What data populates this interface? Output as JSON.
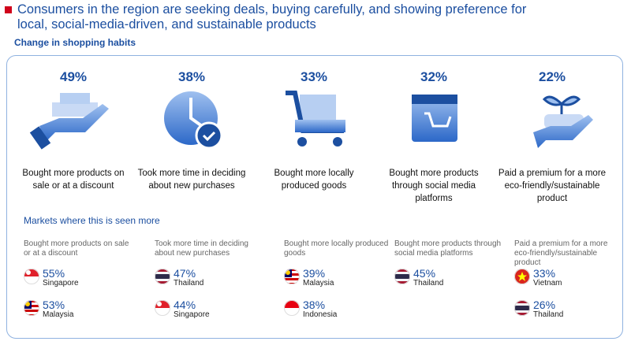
{
  "header": {
    "title": "Consumers in the region are seeking deals, buying carefully, and showing preference for local, social-media-driven, and sustainable products",
    "subtitle": "Change in shopping habits"
  },
  "habits": [
    {
      "percent": "49%",
      "label": "Bought more products on sale or at a discount"
    },
    {
      "percent": "38%",
      "label": "Took more time in deciding about new purchases"
    },
    {
      "percent": "33%",
      "label": "Bought more locally produced goods"
    },
    {
      "percent": "32%",
      "label": "Bought more products through social media platforms"
    },
    {
      "percent": "22%",
      "label": "Paid a premium for a more eco-friendly/sustainable product"
    }
  ],
  "markets_title": "Markets where this is seen more",
  "markets": [
    {
      "habit": "Bought more products on sale or at a discount",
      "entries": [
        {
          "percent": "55%",
          "country": "Singapore"
        },
        {
          "percent": "53%",
          "country": "Malaysia"
        }
      ]
    },
    {
      "habit": "Took more time in deciding about new purchases",
      "entries": [
        {
          "percent": "47%",
          "country": "Thailand"
        },
        {
          "percent": "44%",
          "country": "Singapore"
        }
      ]
    },
    {
      "habit": "Bought more locally produced goods",
      "entries": [
        {
          "percent": "39%",
          "country": "Malaysia"
        },
        {
          "percent": "38%",
          "country": "Indonesia"
        }
      ]
    },
    {
      "habit": "Bought more products through social media platforms",
      "entries": [
        {
          "percent": "45%",
          "country": "Thailand"
        }
      ]
    },
    {
      "habit": "Paid a premium for a more eco-friendly/sustainable product",
      "entries": [
        {
          "percent": "33%",
          "country": "Vietnam"
        },
        {
          "percent": "26%",
          "country": "Thailand"
        }
      ]
    }
  ]
}
